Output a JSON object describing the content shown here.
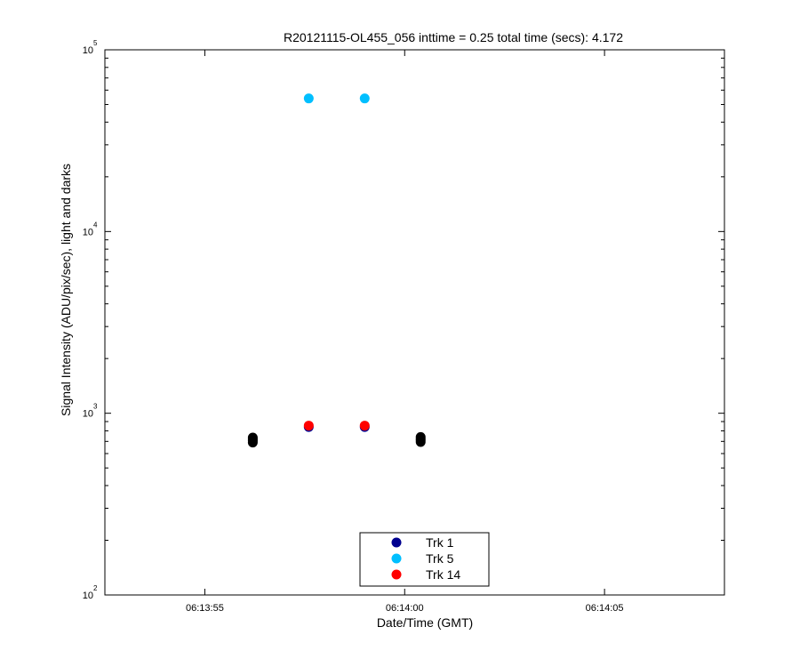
{
  "chart_data": {
    "type": "scatter",
    "title": "R20121115-OL455_056 inttime = 0.25 total time (secs): 4.172",
    "xlabel": "Date/Time (GMT)",
    "ylabel": "Signal Intensity (ADU/pix/sec), light and darks",
    "x_scale": "time",
    "y_scale": "log",
    "xlim": [
      "06:13:52.5",
      "06:14:08.0"
    ],
    "ylim": [
      100,
      100000
    ],
    "x_ticks": [
      {
        "value": "06:13:55",
        "label": "06:13:55"
      },
      {
        "value": "06:14:00",
        "label": "06:14:00"
      },
      {
        "value": "06:14:05",
        "label": "06:14:05"
      }
    ],
    "y_ticks": [
      {
        "value": 100,
        "base": "10",
        "exp": "2"
      },
      {
        "value": 1000,
        "base": "10",
        "exp": "3"
      },
      {
        "value": 10000,
        "base": "10",
        "exp": "4"
      },
      {
        "value": 100000,
        "base": "10",
        "exp": "5"
      }
    ],
    "grid": false,
    "legend_position": "bottom-center",
    "series": [
      {
        "name": "Trk 1",
        "color": "#00008f",
        "x": [
          "06:13:57.6",
          "06:13:59.0"
        ],
        "y": [
          840,
          840
        ]
      },
      {
        "name": "Trk 5",
        "color": "#00bfff",
        "x": [
          "06:13:57.6",
          "06:13:59.0"
        ],
        "y": [
          54000,
          54000
        ]
      },
      {
        "name": "Trk 14",
        "color": "#ff0000",
        "x": [
          "06:13:57.6",
          "06:13:59.0"
        ],
        "y": [
          855,
          855
        ]
      },
      {
        "color": "#000000",
        "x": [
          "06:13:56.2",
          "06:13:56.2",
          "06:13:56.2",
          "06:13:56.2",
          "06:14:00.4",
          "06:14:00.4",
          "06:14:00.4",
          "06:14:00.4"
        ],
        "y": [
          690,
          705,
          720,
          735,
          695,
          710,
          725,
          740
        ]
      }
    ]
  }
}
